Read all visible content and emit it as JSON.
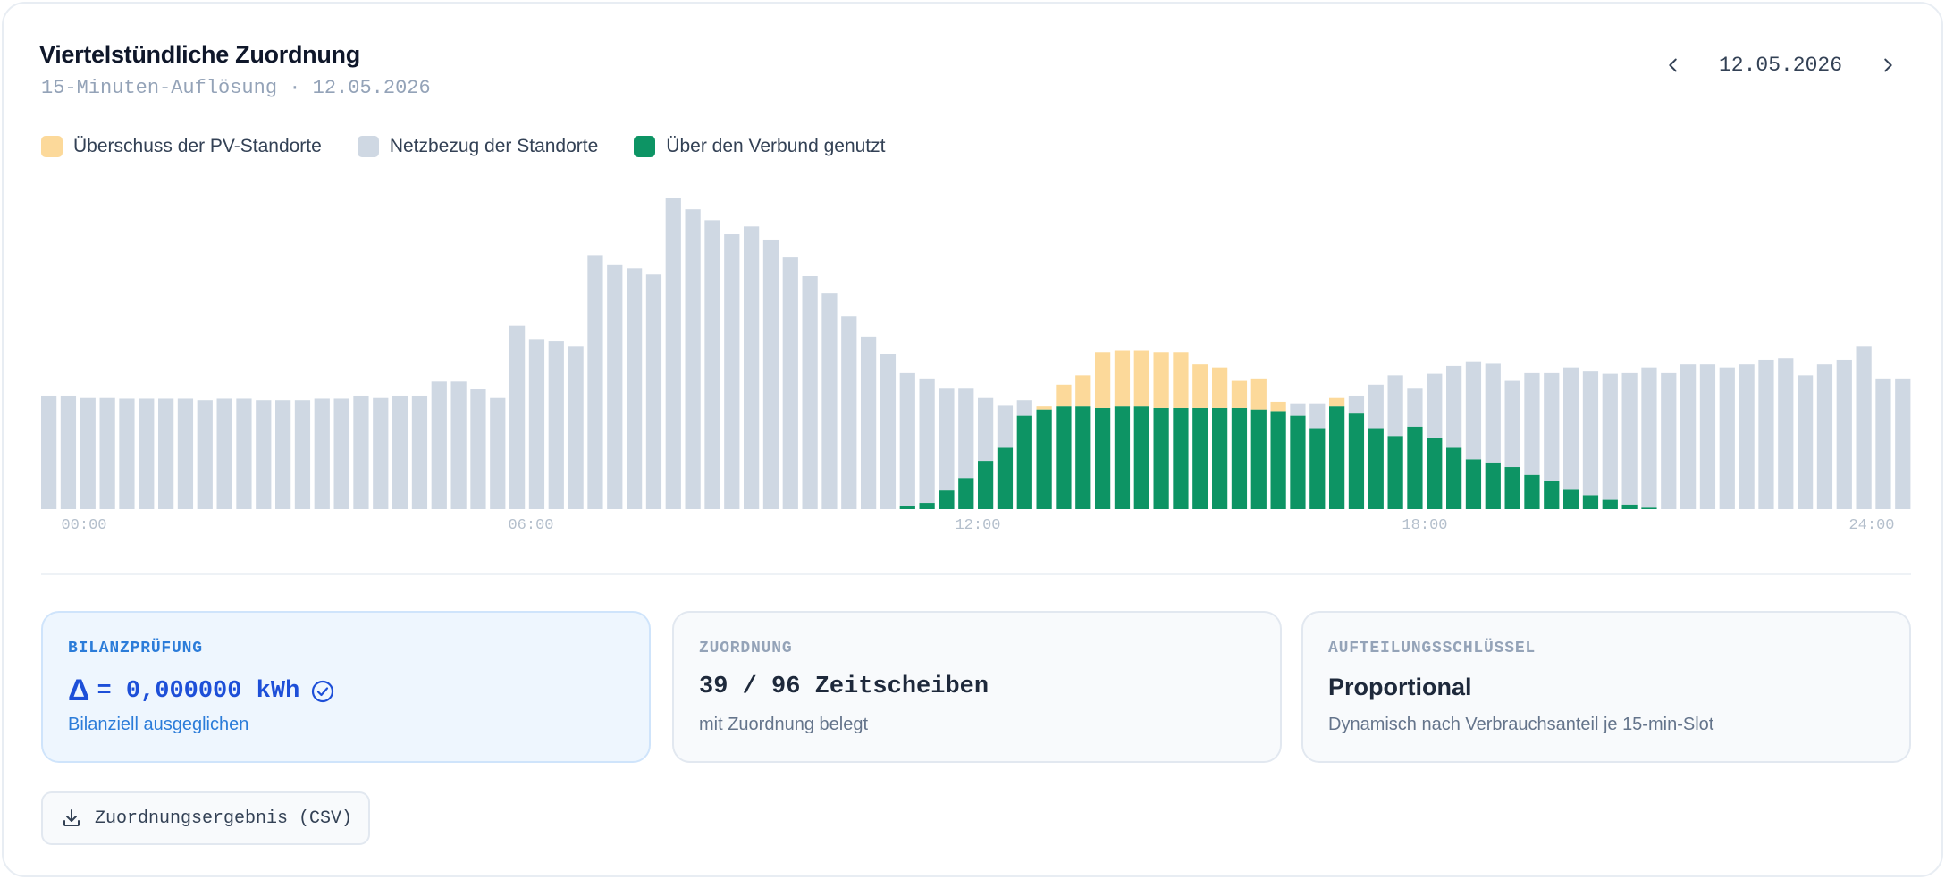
{
  "header": {
    "title": "Viertelstündliche Zuordnung",
    "subtitle": "15-Minuten-Auflösung · 12.05.2026"
  },
  "date_nav": {
    "date": "12.05.2026",
    "prev_icon": "chevron-left-icon",
    "next_icon": "chevron-right-icon"
  },
  "colors": {
    "surplus": "#fcd99a",
    "grid": "#cfd8e3",
    "shared": "#0d9464",
    "accent_blue": "#2b7cd9"
  },
  "chart_data": {
    "type": "bar",
    "stacked": true,
    "slots_per_day": 96,
    "ylim": [
      0,
      1
    ],
    "x_ticks": [
      "00:00",
      "06:00",
      "12:00",
      "18:00",
      "24:00"
    ],
    "series": [
      {
        "name": "Über den Verbund genutzt",
        "color": "#0d9464",
        "values": [
          0,
          0,
          0,
          0,
          0,
          0,
          0,
          0,
          0,
          0,
          0,
          0,
          0,
          0,
          0,
          0,
          0,
          0,
          0,
          0,
          0,
          0,
          0,
          0,
          0,
          0,
          0,
          0,
          0,
          0,
          0,
          0,
          0,
          0,
          0,
          0,
          0,
          0,
          0,
          0,
          0,
          0,
          0,
          0,
          0.01,
          0.02,
          0.06,
          0.1,
          0.155,
          0.2,
          0.3,
          0.32,
          0.33,
          0.33,
          0.325,
          0.33,
          0.33,
          0.325,
          0.325,
          0.325,
          0.325,
          0.325,
          0.32,
          0.315,
          0.3,
          0.26,
          0.33,
          0.31,
          0.26,
          0.235,
          0.265,
          0.23,
          0.2,
          0.16,
          0.15,
          0.135,
          0.11,
          0.09,
          0.065,
          0.045,
          0.03,
          0.015,
          0.005,
          0,
          0,
          0,
          0,
          0,
          0,
          0,
          0,
          0,
          0,
          0,
          0,
          0
        ]
      },
      {
        "name": "Überschuss der PV-Standorte",
        "color": "#fcd99a",
        "values": [
          0,
          0,
          0,
          0,
          0,
          0,
          0,
          0,
          0,
          0,
          0,
          0,
          0,
          0,
          0,
          0,
          0,
          0,
          0,
          0,
          0,
          0,
          0,
          0,
          0,
          0,
          0,
          0,
          0,
          0,
          0,
          0,
          0,
          0,
          0,
          0,
          0,
          0,
          0,
          0,
          0,
          0,
          0,
          0,
          0,
          0,
          0,
          0,
          0,
          0,
          0,
          0.01,
          0.07,
          0.1,
          0.18,
          0.18,
          0.18,
          0.18,
          0.18,
          0.14,
          0.13,
          0.09,
          0.1,
          0.03,
          0,
          0,
          0.03,
          0,
          0,
          0,
          0,
          0,
          0,
          0,
          0,
          0,
          0,
          0,
          0,
          0,
          0,
          0,
          0,
          0,
          0,
          0,
          0,
          0,
          0,
          0,
          0,
          0,
          0,
          0,
          0,
          0
        ]
      },
      {
        "name": "Netzbezug der Standorte",
        "color": "#cfd8e3",
        "values": [
          0.365,
          0.365,
          0.36,
          0.36,
          0.355,
          0.355,
          0.355,
          0.355,
          0.35,
          0.355,
          0.355,
          0.35,
          0.35,
          0.35,
          0.355,
          0.355,
          0.365,
          0.36,
          0.365,
          0.365,
          0.41,
          0.41,
          0.385,
          0.36,
          0.59,
          0.545,
          0.54,
          0.525,
          0.815,
          0.785,
          0.775,
          0.755,
          1.0,
          0.965,
          0.93,
          0.885,
          0.91,
          0.865,
          0.81,
          0.75,
          0.695,
          0.62,
          0.555,
          0.5,
          0.43,
          0.4,
          0.33,
          0.29,
          0.205,
          0.135,
          0.05,
          0,
          0,
          0,
          0,
          0,
          0,
          0,
          0,
          0,
          0,
          0,
          0,
          0,
          0.04,
          0.08,
          0,
          0.055,
          0.14,
          0.195,
          0.125,
          0.205,
          0.26,
          0.315,
          0.32,
          0.28,
          0.33,
          0.35,
          0.39,
          0.4,
          0.405,
          0.425,
          0.45,
          0.44,
          0.465,
          0.465,
          0.455,
          0.465,
          0.48,
          0.485,
          0.43,
          0.465,
          0.48,
          0.525,
          0.42,
          0.42
        ]
      }
    ]
  },
  "panels": {
    "balance": {
      "label": "BILANZPRÜFUNG",
      "delta_symbol": "Δ",
      "value": "= 0,000000 kWh",
      "sub": "Bilanziell ausgeglichen",
      "icon": "check-circle-icon"
    },
    "allocation": {
      "label": "ZUORDNUNG",
      "value": "39 / 96 Zeitscheiben",
      "sub": "mit Zuordnung belegt"
    },
    "key": {
      "label": "AUFTEILUNGSSCHLÜSSEL",
      "value": "Proportional",
      "sub": "Dynamisch nach Verbrauchsanteil je 15-min-Slot"
    }
  },
  "export_button": {
    "label": "Zuordnungsergebnis (CSV)",
    "icon": "download-icon"
  }
}
